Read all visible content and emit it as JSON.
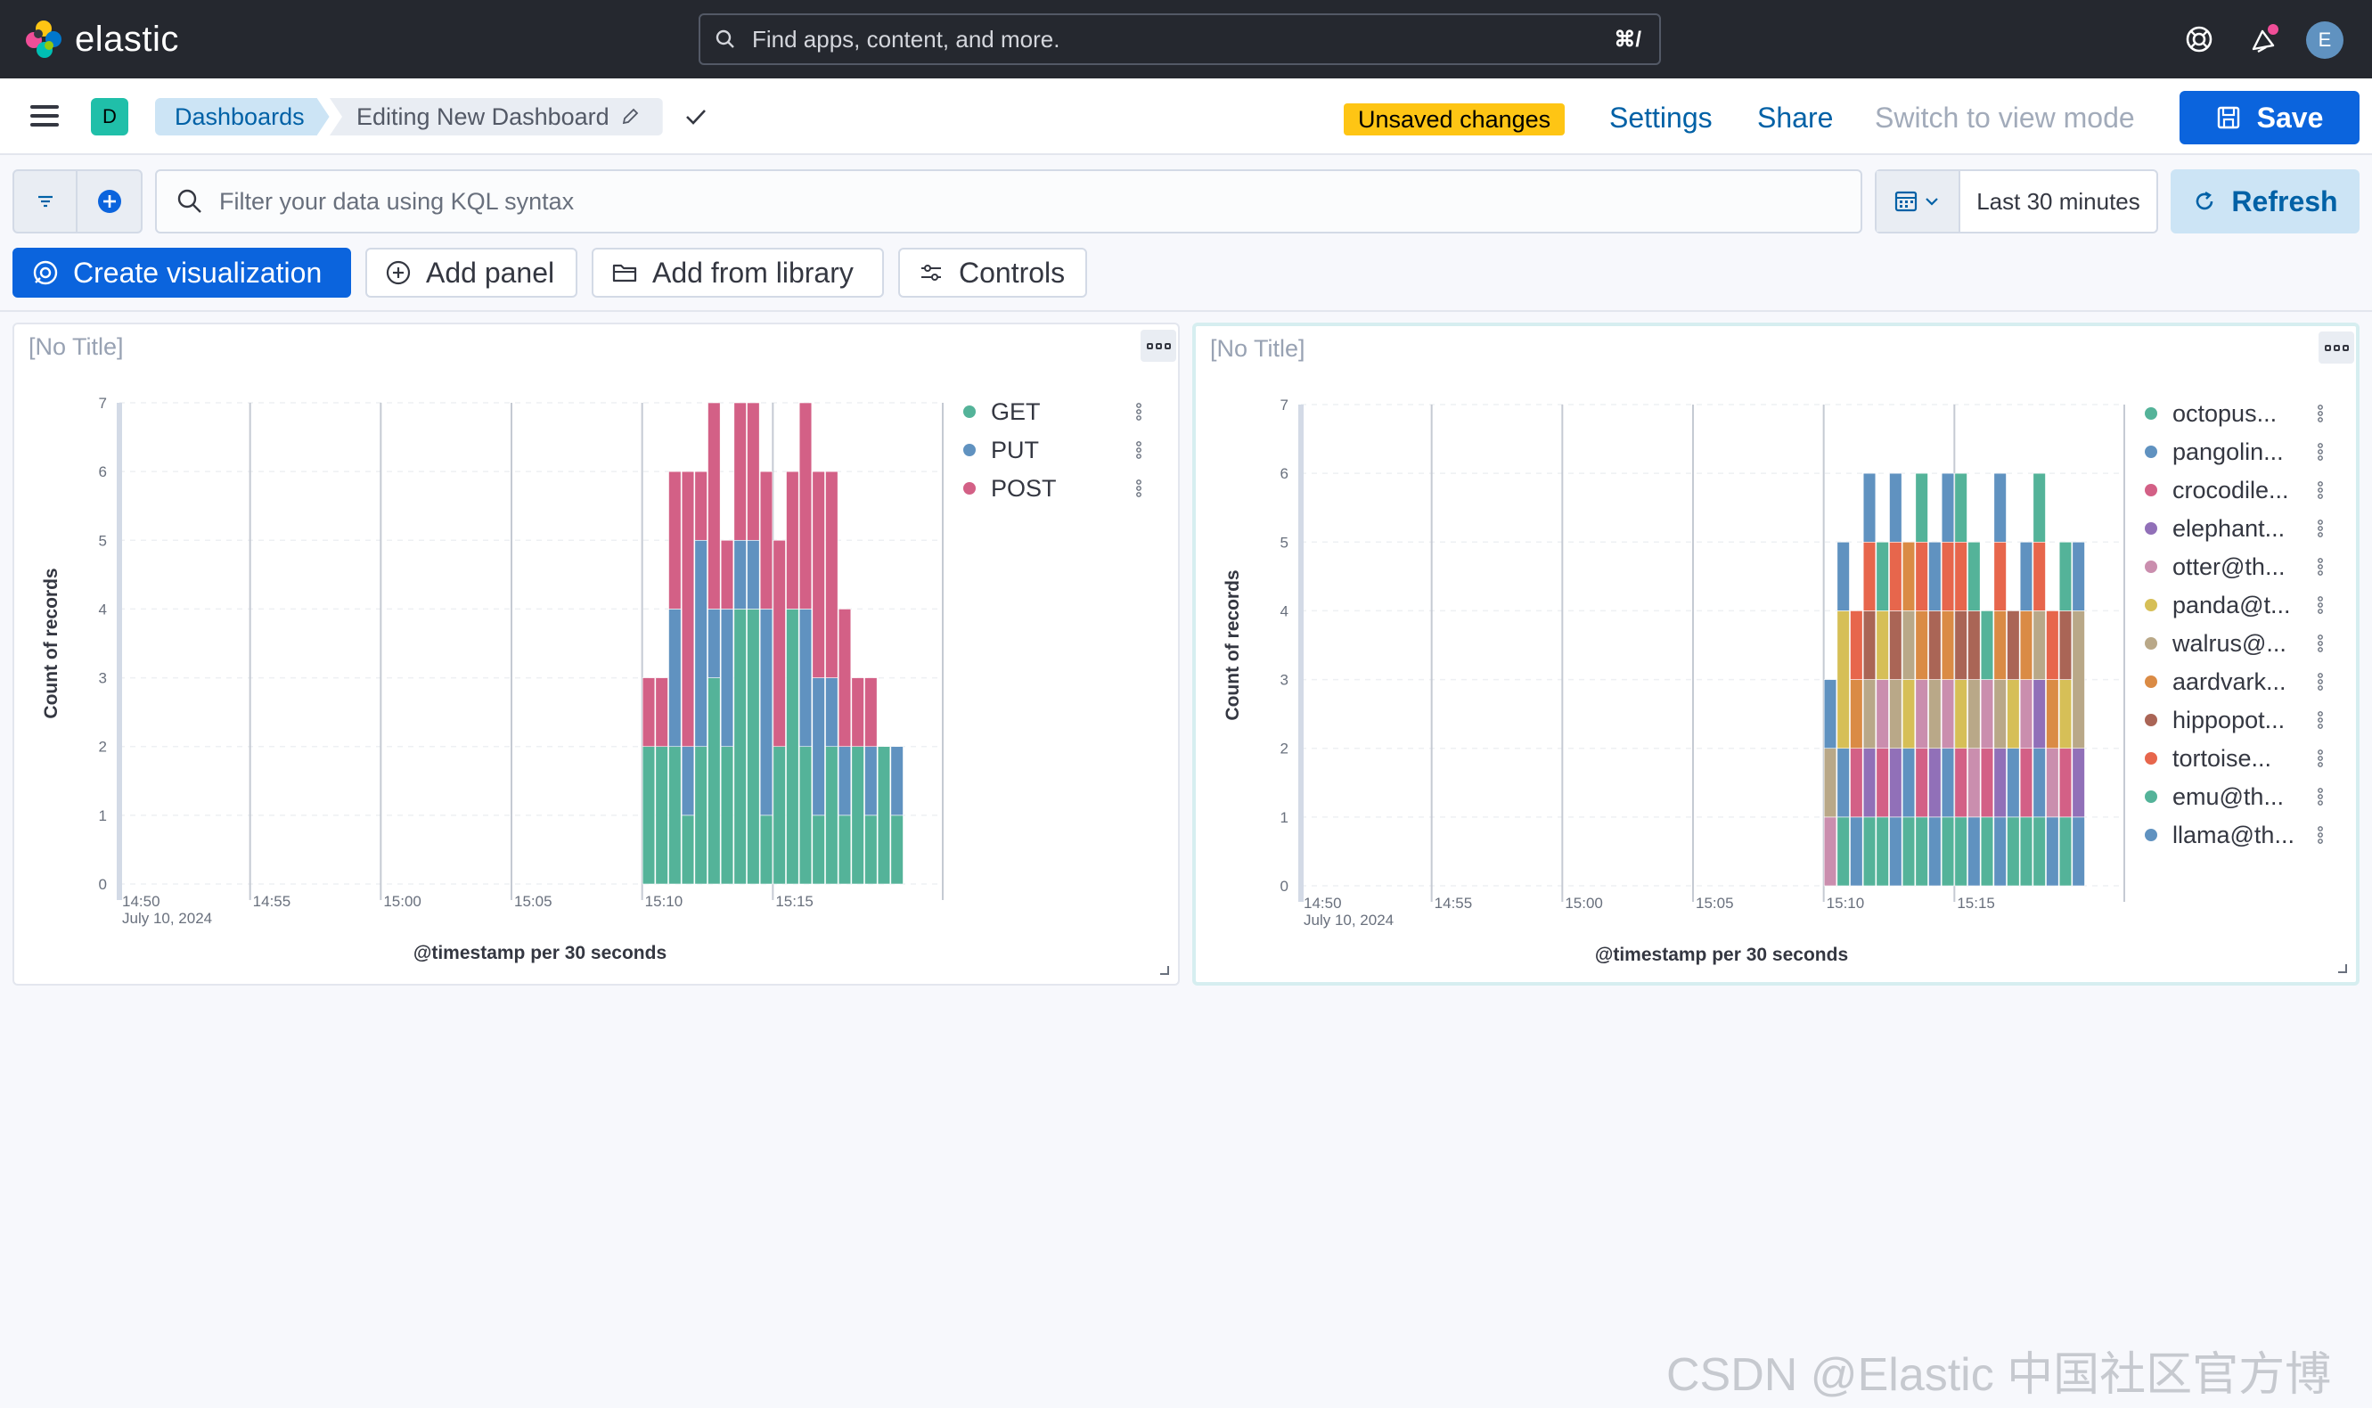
{
  "header": {
    "logo_text": "elastic",
    "search_placeholder": "Find apps, content, and more.",
    "search_shortcut": "⌘/",
    "avatar_initial": "E",
    "icons": [
      "help-icon",
      "newsfeed-icon"
    ]
  },
  "nav": {
    "space_initial": "D",
    "breadcrumb_dashboards": "Dashboards",
    "breadcrumb_current": "Editing New Dashboard",
    "unsaved_badge": "Unsaved changes",
    "settings": "Settings",
    "share": "Share",
    "switch_view": "Switch to view mode",
    "save": "Save"
  },
  "query": {
    "kql_placeholder": "Filter your data using KQL syntax",
    "time_range": "Last 30 minutes",
    "refresh": "Refresh"
  },
  "toolbar": {
    "create_visualization": "Create visualization",
    "add_panel": "Add panel",
    "add_from_library": "Add from library",
    "controls": "Controls"
  },
  "panels": [
    {
      "title": "[No Title]",
      "chart_data": {
        "type": "bar",
        "stacked": true,
        "ylabel": "Count of records",
        "xlabel": "@timestamp per 30 seconds",
        "ylim": [
          0,
          7
        ],
        "yticks": [
          0,
          1,
          2,
          3,
          4,
          5,
          6,
          7
        ],
        "xticks": [
          "14:50",
          "14:55",
          "15:00",
          "15:05",
          "15:10",
          "15:15"
        ],
        "xtick_sub": "July 10, 2024",
        "x_start": "14:50",
        "bins_start": "15:10",
        "bin_count": 20,
        "series": [
          {
            "name": "GET",
            "color": "#54b399",
            "values": [
              2,
              2,
              2,
              1,
              2,
              3,
              2,
              4,
              4,
              1,
              2,
              4,
              2,
              1,
              2,
              1,
              2,
              1,
              2,
              1
            ]
          },
          {
            "name": "PUT",
            "color": "#6092c0",
            "values": [
              0,
              0,
              2,
              1,
              3,
              1,
              2,
              1,
              1,
              3,
              0,
              0,
              2,
              2,
              1,
              1,
              0,
              1,
              0,
              1
            ]
          },
          {
            "name": "POST",
            "color": "#d36086",
            "values": [
              1,
              1,
              2,
              4,
              1,
              3,
              1,
              2,
              2,
              2,
              3,
              2,
              3,
              3,
              3,
              2,
              1,
              1,
              0,
              0
            ]
          }
        ]
      }
    },
    {
      "title": "[No Title]",
      "chart_data": {
        "type": "bar",
        "stacked": true,
        "ylabel": "Count of records",
        "xlabel": "@timestamp per 30 seconds",
        "ylim": [
          0,
          7
        ],
        "yticks": [
          0,
          1,
          2,
          3,
          4,
          5,
          6,
          7
        ],
        "xticks": [
          "14:50",
          "14:55",
          "15:00",
          "15:05",
          "15:10",
          "15:15"
        ],
        "xtick_sub": "July 10, 2024",
        "x_start": "14:50",
        "bins_start": "15:10",
        "bin_count": 20,
        "series": [
          {
            "name": "octopus...",
            "color": "#54b399",
            "values": [
              0,
              1,
              0,
              1,
              1,
              0,
              1,
              1,
              0,
              1,
              1,
              0,
              1,
              0,
              1,
              1,
              1,
              0,
              1,
              0
            ]
          },
          {
            "name": "pangolin...",
            "color": "#6092c0",
            "values": [
              0,
              1,
              1,
              0,
              0,
              1,
              1,
              0,
              1,
              1,
              0,
              1,
              0,
              1,
              1,
              0,
              1,
              1,
              0,
              1
            ]
          },
          {
            "name": "crocodile...",
            "color": "#d36086",
            "values": [
              0,
              0,
              1,
              0,
              1,
              0,
              0,
              1,
              0,
              0,
              1,
              0,
              1,
              0,
              0,
              1,
              0,
              0,
              1,
              0
            ]
          },
          {
            "name": "elephant...",
            "color": "#9170b8",
            "values": [
              0,
              0,
              0,
              1,
              0,
              1,
              0,
              0,
              1,
              0,
              0,
              0,
              0,
              1,
              0,
              0,
              1,
              0,
              0,
              1
            ]
          },
          {
            "name": "otter@th...",
            "color": "#ca8eae",
            "values": [
              1,
              0,
              0,
              0,
              1,
              0,
              0,
              1,
              0,
              1,
              0,
              1,
              1,
              0,
              0,
              1,
              0,
              1,
              0,
              0
            ]
          },
          {
            "name": "panda@t...",
            "color": "#d6bf57",
            "values": [
              0,
              2,
              0,
              0,
              1,
              0,
              1,
              0,
              0,
              0,
              1,
              0,
              0,
              0,
              1,
              0,
              0,
              0,
              1,
              0
            ]
          },
          {
            "name": "walrus@...",
            "color": "#b9a888",
            "values": [
              1,
              0,
              0,
              1,
              0,
              1,
              1,
              0,
              1,
              0,
              0,
              1,
              0,
              1,
              0,
              0,
              1,
              0,
              0,
              2
            ]
          },
          {
            "name": "aardvark...",
            "color": "#da8b45",
            "values": [
              0,
              0,
              1,
              0,
              0,
              0,
              1,
              1,
              0,
              1,
              0,
              0,
              0,
              1,
              0,
              1,
              0,
              1,
              0,
              0
            ]
          },
          {
            "name": "hippopot...",
            "color": "#aa6556",
            "values": [
              0,
              0,
              0,
              1,
              0,
              1,
              0,
              0,
              1,
              0,
              1,
              1,
              0,
              0,
              1,
              0,
              0,
              0,
              1,
              0
            ]
          },
          {
            "name": "tortoise...",
            "color": "#e7664c",
            "values": [
              0,
              0,
              1,
              1,
              0,
              1,
              0,
              1,
              0,
              1,
              1,
              0,
              0,
              1,
              0,
              0,
              1,
              1,
              0,
              0
            ]
          },
          {
            "name": "emu@th...",
            "color": "#54b399",
            "values": [
              0,
              0,
              0,
              0,
              1,
              0,
              0,
              1,
              0,
              0,
              1,
              1,
              1,
              0,
              0,
              0,
              1,
              0,
              1,
              0
            ]
          },
          {
            "name": "llama@th...",
            "color": "#6092c0",
            "values": [
              1,
              1,
              0,
              1,
              0,
              1,
              0,
              0,
              1,
              1,
              0,
              0,
              0,
              1,
              0,
              1,
              0,
              0,
              0,
              1
            ]
          }
        ]
      }
    }
  ],
  "watermark": "CSDN @Elastic 中国社区官方博客"
}
